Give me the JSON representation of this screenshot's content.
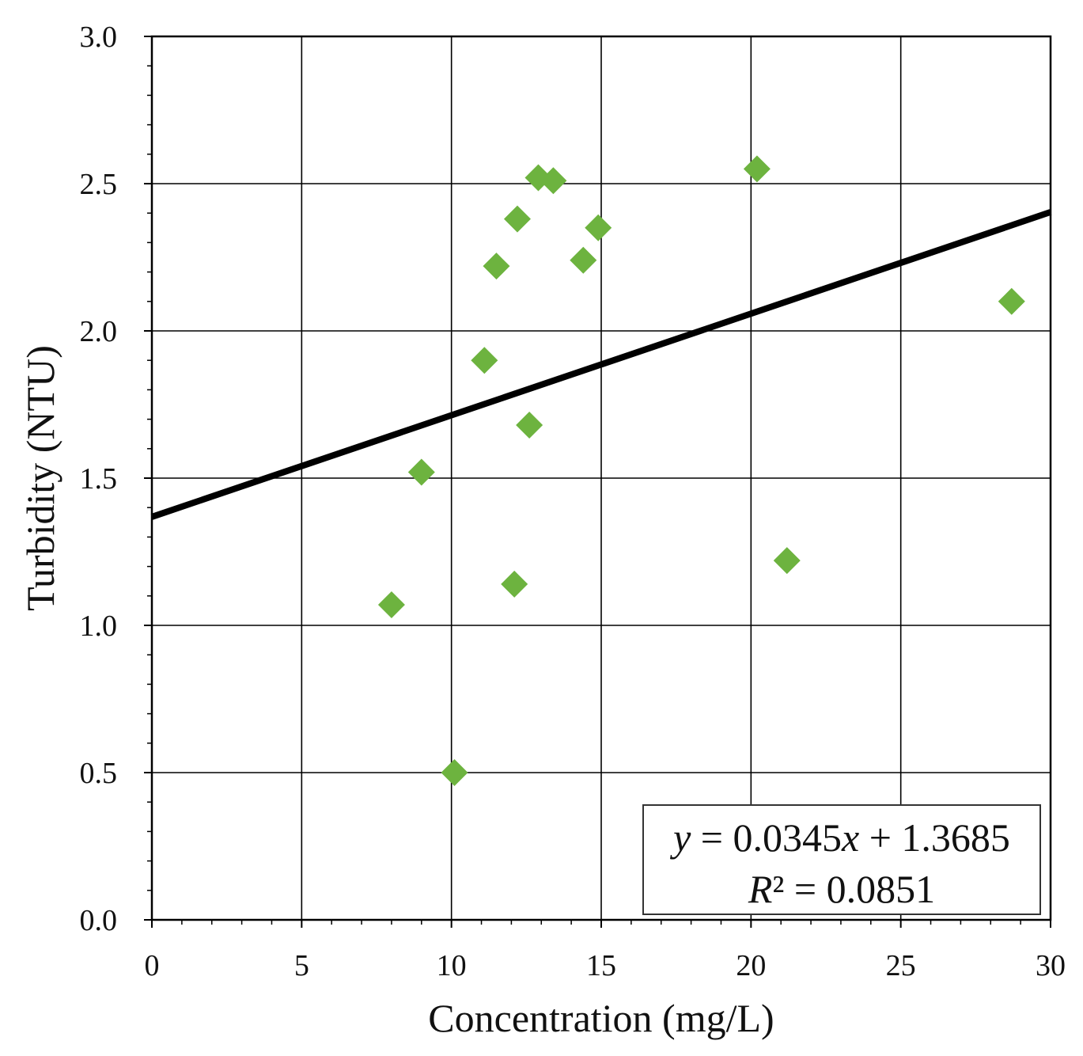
{
  "chart_data": {
    "type": "scatter",
    "title": "",
    "xlabel": "Concentration (mg/L)",
    "ylabel": "Turbidity (NTU)",
    "xlim": [
      0,
      30
    ],
    "ylim": [
      0.0,
      3.0
    ],
    "x_ticks": [
      "0",
      "5",
      "10",
      "15",
      "20",
      "25",
      "30"
    ],
    "y_ticks": [
      "0.0",
      "0.5",
      "1.0",
      "1.5",
      "2.0",
      "2.5",
      "3.0"
    ],
    "x_tick_values": [
      0,
      5,
      10,
      15,
      20,
      25,
      30
    ],
    "y_tick_values": [
      0.0,
      0.5,
      1.0,
      1.5,
      2.0,
      2.5,
      3.0
    ],
    "grid": true,
    "series": [
      {
        "name": "Samples",
        "marker": "diamond",
        "color": "#6db33f",
        "points": [
          {
            "x": 8.0,
            "y": 1.07
          },
          {
            "x": 9.0,
            "y": 1.52
          },
          {
            "x": 10.1,
            "y": 0.5
          },
          {
            "x": 11.1,
            "y": 1.9
          },
          {
            "x": 11.5,
            "y": 2.22
          },
          {
            "x": 12.1,
            "y": 1.14
          },
          {
            "x": 12.2,
            "y": 2.38
          },
          {
            "x": 12.6,
            "y": 1.68
          },
          {
            "x": 12.9,
            "y": 2.52
          },
          {
            "x": 13.4,
            "y": 2.51
          },
          {
            "x": 14.4,
            "y": 2.24
          },
          {
            "x": 14.9,
            "y": 2.35
          },
          {
            "x": 20.2,
            "y": 2.55
          },
          {
            "x": 21.2,
            "y": 1.22
          },
          {
            "x": 28.7,
            "y": 2.1
          }
        ]
      }
    ],
    "trendline": {
      "type": "linear",
      "slope": 0.0345,
      "intercept": 1.3685,
      "color": "#000000"
    },
    "annotation": {
      "equation_var_y": "y",
      "equation_rest": " = 0.0345",
      "equation_var_x": "x",
      "equation_tail": " + 1.3685",
      "r2_label": "R",
      "r2_rest": "² = 0.0851",
      "location": "bottom-right"
    }
  }
}
